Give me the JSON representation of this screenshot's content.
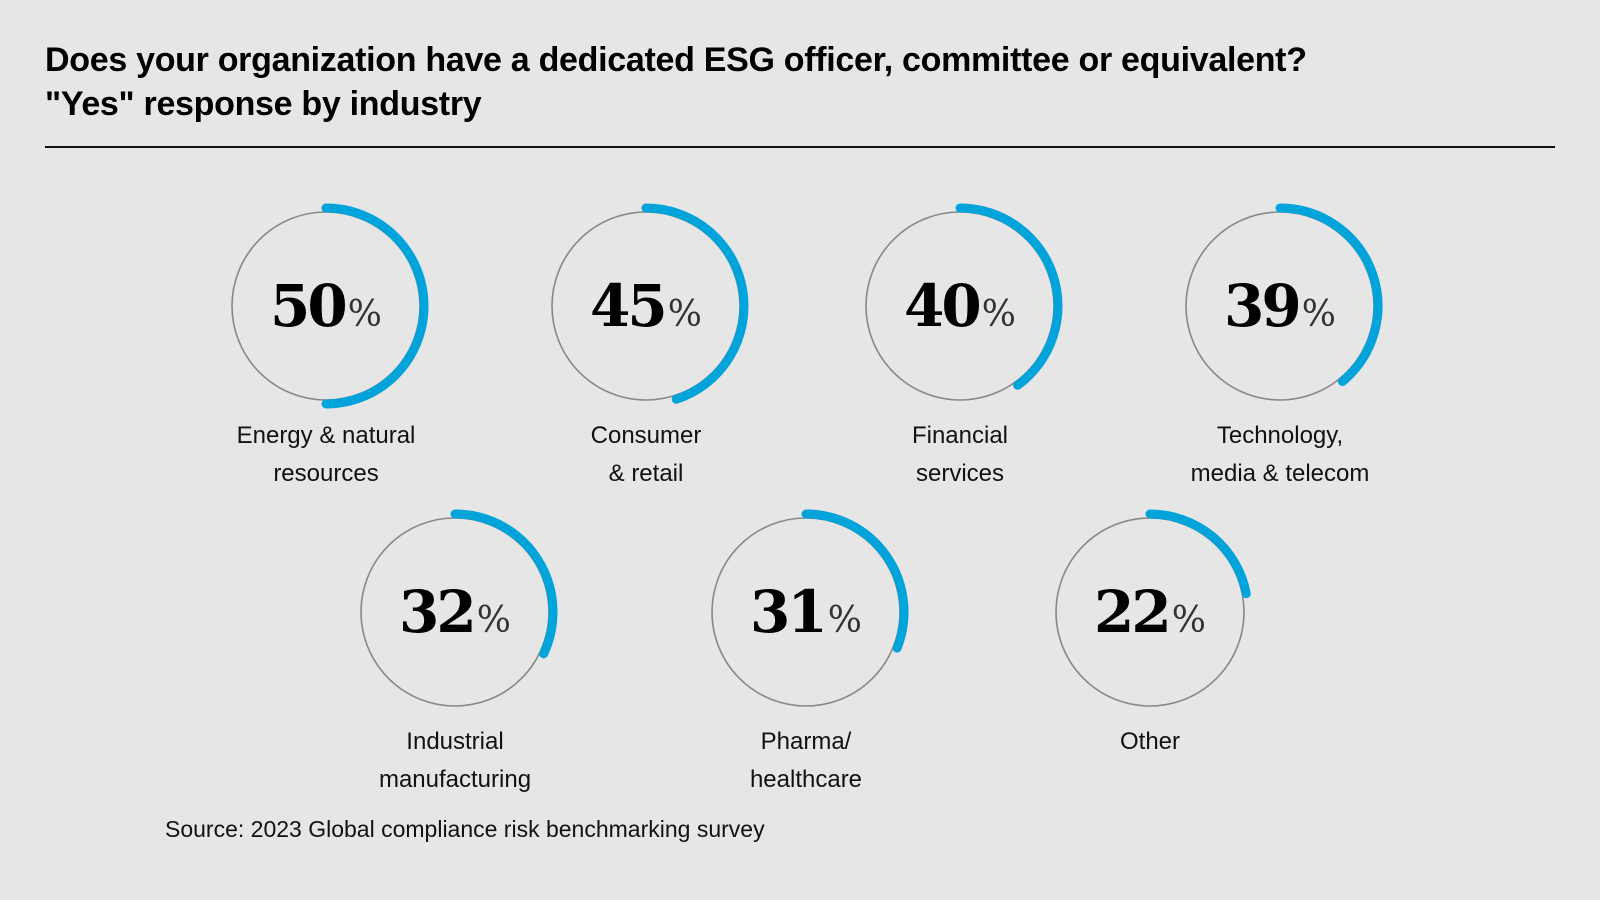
{
  "header": {
    "title_line1": "Does your organization have a dedicated ESG officer, committee or equivalent?",
    "title_line2": "\"Yes\" response by industry"
  },
  "footer": {
    "source": "Source: 2023 Global compliance risk benchmarking survey"
  },
  "colors": {
    "arc": "#00a3da",
    "track": "#888888",
    "background": "#e6e6e6"
  },
  "chart_data": {
    "type": "pie",
    "subtype": "radial-progress",
    "title": "Does your organization have a dedicated ESG officer, committee or equivalent? \"Yes\" response by industry",
    "unit": "%",
    "items": [
      {
        "label": [
          "Energy & natural",
          "resources"
        ],
        "value": 50
      },
      {
        "label": [
          "Consumer",
          "& retail"
        ],
        "value": 45
      },
      {
        "label": [
          "Financial",
          "services"
        ],
        "value": 40
      },
      {
        "label": [
          "Technology,",
          "media & telecom"
        ],
        "value": 39
      },
      {
        "label": [
          "Industrial",
          "manufacturing"
        ],
        "value": 32
      },
      {
        "label": [
          "Pharma/",
          "healthcare"
        ],
        "value": 31
      },
      {
        "label": [
          "Other"
        ],
        "value": 22
      }
    ]
  }
}
